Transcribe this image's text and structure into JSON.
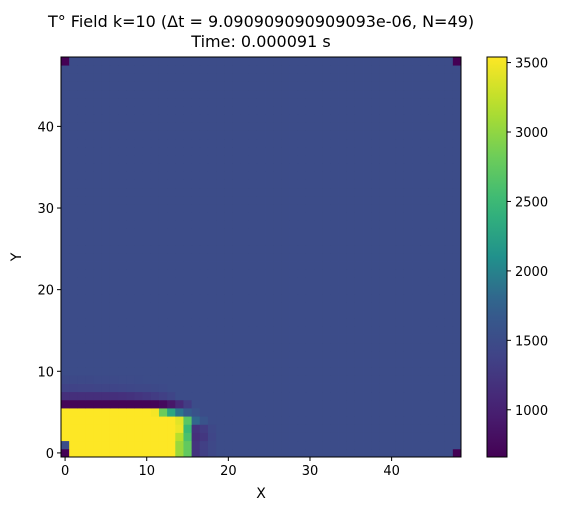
{
  "chart_data": {
    "type": "heatmap",
    "title_line1": "T° Field k=10 (Δt = 9.090909090909093e-06, N=49)",
    "title_line2": "Time: 0.000091 s",
    "xlabel": "X",
    "ylabel": "Y",
    "grid_size": 49,
    "xlim": [
      -0.5,
      48.5
    ],
    "ylim": [
      -0.5,
      48.5
    ],
    "x_ticks": [
      0,
      10,
      20,
      30,
      40
    ],
    "y_ticks": [
      0,
      10,
      20,
      30,
      40
    ],
    "colormap": "viridis",
    "vmin": 660,
    "vmax": 3540,
    "colorbar_ticks": [
      1000,
      1500,
      2000,
      2500,
      3000,
      3500
    ],
    "background_value": 1500,
    "cell_overrides": [
      {
        "x": 0,
        "y": 0,
        "value": 660
      },
      {
        "x": 48,
        "y": 0,
        "value": 660
      },
      {
        "x": 0,
        "y": 48,
        "value": 660
      },
      {
        "x": 48,
        "y": 48,
        "value": 660
      },
      {
        "x": 0,
        "y": 6,
        "value": 690
      },
      {
        "x": 1,
        "y": 6,
        "value": 690
      },
      {
        "x": 2,
        "y": 6,
        "value": 690
      },
      {
        "x": 3,
        "y": 6,
        "value": 690
      },
      {
        "x": 4,
        "y": 6,
        "value": 690
      },
      {
        "x": 5,
        "y": 6,
        "value": 690
      },
      {
        "x": 6,
        "y": 6,
        "value": 690
      },
      {
        "x": 7,
        "y": 6,
        "value": 690
      },
      {
        "x": 8,
        "y": 6,
        "value": 690
      },
      {
        "x": 9,
        "y": 6,
        "value": 690
      },
      {
        "x": 10,
        "y": 6,
        "value": 690
      },
      {
        "x": 11,
        "y": 6,
        "value": 700
      },
      {
        "x": 12,
        "y": 6,
        "value": 760
      },
      {
        "x": 13,
        "y": 6,
        "value": 900
      },
      {
        "x": 14,
        "y": 6,
        "value": 1100
      },
      {
        "x": 15,
        "y": 6,
        "value": 1300
      },
      {
        "x": 0,
        "y": 7,
        "value": 1150
      },
      {
        "x": 1,
        "y": 7,
        "value": 1150
      },
      {
        "x": 2,
        "y": 7,
        "value": 1150
      },
      {
        "x": 3,
        "y": 7,
        "value": 1150
      },
      {
        "x": 4,
        "y": 7,
        "value": 1150
      },
      {
        "x": 5,
        "y": 7,
        "value": 1150
      },
      {
        "x": 6,
        "y": 7,
        "value": 1160
      },
      {
        "x": 7,
        "y": 7,
        "value": 1170
      },
      {
        "x": 8,
        "y": 7,
        "value": 1190
      },
      {
        "x": 9,
        "y": 7,
        "value": 1220
      },
      {
        "x": 10,
        "y": 7,
        "value": 1260
      },
      {
        "x": 11,
        "y": 7,
        "value": 1300
      },
      {
        "x": 12,
        "y": 7,
        "value": 1350
      },
      {
        "x": 13,
        "y": 7,
        "value": 1400
      },
      {
        "x": 0,
        "y": 8,
        "value": 1380
      },
      {
        "x": 1,
        "y": 8,
        "value": 1380
      },
      {
        "x": 2,
        "y": 8,
        "value": 1390
      },
      {
        "x": 3,
        "y": 8,
        "value": 1390
      },
      {
        "x": 4,
        "y": 8,
        "value": 1400
      },
      {
        "x": 5,
        "y": 8,
        "value": 1400
      },
      {
        "x": 6,
        "y": 8,
        "value": 1410
      },
      {
        "x": 7,
        "y": 8,
        "value": 1420
      },
      {
        "x": 8,
        "y": 8,
        "value": 1430
      },
      {
        "x": 9,
        "y": 8,
        "value": 1440
      },
      {
        "x": 10,
        "y": 8,
        "value": 1450
      },
      {
        "x": 11,
        "y": 8,
        "value": 1460
      },
      {
        "x": 12,
        "y": 8,
        "value": 1470
      },
      {
        "x": 0,
        "y": 9,
        "value": 1460
      },
      {
        "x": 1,
        "y": 9,
        "value": 1460
      },
      {
        "x": 2,
        "y": 9,
        "value": 1465
      },
      {
        "x": 3,
        "y": 9,
        "value": 1465
      },
      {
        "x": 4,
        "y": 9,
        "value": 1470
      },
      {
        "x": 5,
        "y": 9,
        "value": 1470
      },
      {
        "x": 6,
        "y": 9,
        "value": 1475
      },
      {
        "x": 7,
        "y": 9,
        "value": 1480
      },
      {
        "x": 8,
        "y": 9,
        "value": 1485
      },
      {
        "x": 9,
        "y": 9,
        "value": 1490
      },
      {
        "x": 0,
        "y": 5,
        "value": 3540
      },
      {
        "x": 1,
        "y": 5,
        "value": 3540
      },
      {
        "x": 2,
        "y": 5,
        "value": 3540
      },
      {
        "x": 3,
        "y": 5,
        "value": 3540
      },
      {
        "x": 4,
        "y": 5,
        "value": 3540
      },
      {
        "x": 5,
        "y": 5,
        "value": 3540
      },
      {
        "x": 6,
        "y": 5,
        "value": 3540
      },
      {
        "x": 7,
        "y": 5,
        "value": 3540
      },
      {
        "x": 8,
        "y": 5,
        "value": 3540
      },
      {
        "x": 9,
        "y": 5,
        "value": 3540
      },
      {
        "x": 10,
        "y": 5,
        "value": 3540
      },
      {
        "x": 11,
        "y": 5,
        "value": 3500
      },
      {
        "x": 12,
        "y": 5,
        "value": 2800
      },
      {
        "x": 13,
        "y": 5,
        "value": 2300
      },
      {
        "x": 14,
        "y": 5,
        "value": 1900
      },
      {
        "x": 15,
        "y": 5,
        "value": 1700
      },
      {
        "x": 16,
        "y": 5,
        "value": 1580
      },
      {
        "x": 0,
        "y": 4,
        "value": 3540
      },
      {
        "x": 1,
        "y": 4,
        "value": 3540
      },
      {
        "x": 2,
        "y": 4,
        "value": 3540
      },
      {
        "x": 3,
        "y": 4,
        "value": 3540
      },
      {
        "x": 4,
        "y": 4,
        "value": 3540
      },
      {
        "x": 5,
        "y": 4,
        "value": 3540
      },
      {
        "x": 6,
        "y": 4,
        "value": 3540
      },
      {
        "x": 7,
        "y": 4,
        "value": 3540
      },
      {
        "x": 8,
        "y": 4,
        "value": 3540
      },
      {
        "x": 9,
        "y": 4,
        "value": 3540
      },
      {
        "x": 10,
        "y": 4,
        "value": 3540
      },
      {
        "x": 11,
        "y": 4,
        "value": 3540
      },
      {
        "x": 12,
        "y": 4,
        "value": 3540
      },
      {
        "x": 13,
        "y": 4,
        "value": 3540
      },
      {
        "x": 14,
        "y": 4,
        "value": 3400
      },
      {
        "x": 15,
        "y": 4,
        "value": 2700
      },
      {
        "x": 16,
        "y": 4,
        "value": 1800
      },
      {
        "x": 17,
        "y": 4,
        "value": 1600
      },
      {
        "x": 0,
        "y": 3,
        "value": 3540
      },
      {
        "x": 1,
        "y": 3,
        "value": 3540
      },
      {
        "x": 2,
        "y": 3,
        "value": 3540
      },
      {
        "x": 3,
        "y": 3,
        "value": 3540
      },
      {
        "x": 4,
        "y": 3,
        "value": 3540
      },
      {
        "x": 5,
        "y": 3,
        "value": 3540
      },
      {
        "x": 6,
        "y": 3,
        "value": 3540
      },
      {
        "x": 7,
        "y": 3,
        "value": 3540
      },
      {
        "x": 8,
        "y": 3,
        "value": 3540
      },
      {
        "x": 9,
        "y": 3,
        "value": 3540
      },
      {
        "x": 10,
        "y": 3,
        "value": 3540
      },
      {
        "x": 11,
        "y": 3,
        "value": 3540
      },
      {
        "x": 12,
        "y": 3,
        "value": 3540
      },
      {
        "x": 13,
        "y": 3,
        "value": 3540
      },
      {
        "x": 14,
        "y": 3,
        "value": 3450
      },
      {
        "x": 15,
        "y": 3,
        "value": 2500
      },
      {
        "x": 16,
        "y": 3,
        "value": 1200
      },
      {
        "x": 17,
        "y": 3,
        "value": 1300
      },
      {
        "x": 18,
        "y": 3,
        "value": 1450
      },
      {
        "x": 0,
        "y": 2,
        "value": 3540
      },
      {
        "x": 1,
        "y": 2,
        "value": 3540
      },
      {
        "x": 2,
        "y": 2,
        "value": 3540
      },
      {
        "x": 3,
        "y": 2,
        "value": 3540
      },
      {
        "x": 4,
        "y": 2,
        "value": 3540
      },
      {
        "x": 5,
        "y": 2,
        "value": 3540
      },
      {
        "x": 6,
        "y": 2,
        "value": 3540
      },
      {
        "x": 7,
        "y": 2,
        "value": 3540
      },
      {
        "x": 8,
        "y": 2,
        "value": 3540
      },
      {
        "x": 9,
        "y": 2,
        "value": 3540
      },
      {
        "x": 10,
        "y": 2,
        "value": 3540
      },
      {
        "x": 11,
        "y": 2,
        "value": 3540
      },
      {
        "x": 12,
        "y": 2,
        "value": 3540
      },
      {
        "x": 13,
        "y": 2,
        "value": 3540
      },
      {
        "x": 14,
        "y": 2,
        "value": 3200
      },
      {
        "x": 15,
        "y": 2,
        "value": 2600
      },
      {
        "x": 16,
        "y": 2,
        "value": 1150
      },
      {
        "x": 17,
        "y": 2,
        "value": 1250
      },
      {
        "x": 18,
        "y": 2,
        "value": 1420
      },
      {
        "x": 1,
        "y": 1,
        "value": 3540
      },
      {
        "x": 2,
        "y": 1,
        "value": 3540
      },
      {
        "x": 3,
        "y": 1,
        "value": 3540
      },
      {
        "x": 4,
        "y": 1,
        "value": 3540
      },
      {
        "x": 5,
        "y": 1,
        "value": 3540
      },
      {
        "x": 6,
        "y": 1,
        "value": 3540
      },
      {
        "x": 7,
        "y": 1,
        "value": 3540
      },
      {
        "x": 8,
        "y": 1,
        "value": 3540
      },
      {
        "x": 9,
        "y": 1,
        "value": 3540
      },
      {
        "x": 10,
        "y": 1,
        "value": 3540
      },
      {
        "x": 11,
        "y": 1,
        "value": 3540
      },
      {
        "x": 12,
        "y": 1,
        "value": 3540
      },
      {
        "x": 13,
        "y": 1,
        "value": 3540
      },
      {
        "x": 14,
        "y": 1,
        "value": 3050
      },
      {
        "x": 15,
        "y": 1,
        "value": 2750
      },
      {
        "x": 16,
        "y": 1,
        "value": 1200
      },
      {
        "x": 17,
        "y": 1,
        "value": 1350
      },
      {
        "x": 18,
        "y": 1,
        "value": 1450
      },
      {
        "x": 1,
        "y": 0,
        "value": 3540
      },
      {
        "x": 2,
        "y": 0,
        "value": 3540
      },
      {
        "x": 3,
        "y": 0,
        "value": 3540
      },
      {
        "x": 4,
        "y": 0,
        "value": 3540
      },
      {
        "x": 5,
        "y": 0,
        "value": 3540
      },
      {
        "x": 6,
        "y": 0,
        "value": 3540
      },
      {
        "x": 7,
        "y": 0,
        "value": 3540
      },
      {
        "x": 8,
        "y": 0,
        "value": 3540
      },
      {
        "x": 9,
        "y": 0,
        "value": 3540
      },
      {
        "x": 10,
        "y": 0,
        "value": 3540
      },
      {
        "x": 11,
        "y": 0,
        "value": 3540
      },
      {
        "x": 12,
        "y": 0,
        "value": 3540
      },
      {
        "x": 13,
        "y": 0,
        "value": 3540
      },
      {
        "x": 14,
        "y": 0,
        "value": 3050
      },
      {
        "x": 15,
        "y": 0,
        "value": 2750
      },
      {
        "x": 16,
        "y": 0,
        "value": 1200
      },
      {
        "x": 17,
        "y": 0,
        "value": 1350
      },
      {
        "x": 18,
        "y": 0,
        "value": 1450
      }
    ]
  }
}
